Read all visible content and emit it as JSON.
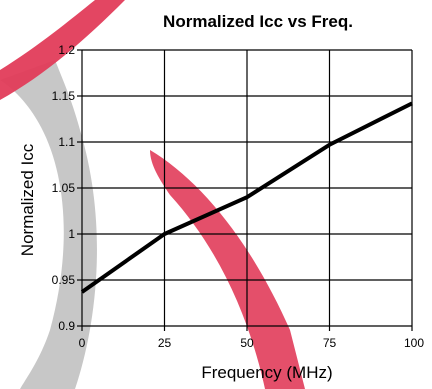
{
  "chart_data": {
    "type": "line",
    "title": "Normalized Icc vs Freq.",
    "xlabel": "Frequency (MHz)",
    "ylabel": "Normalized Icc",
    "xlim": [
      0,
      100
    ],
    "ylim": [
      0.9,
      1.2
    ],
    "xticks": [
      0,
      25,
      50,
      75,
      100
    ],
    "xtick_labels": [
      "0",
      "25",
      "50",
      "75",
      "100"
    ],
    "yticks": [
      0.9,
      0.95,
      1.0,
      1.05,
      1.1,
      1.15,
      1.2
    ],
    "ytick_labels": [
      "0.9",
      "0.95",
      "1",
      "1.05",
      "1.1",
      "1.15",
      "1.2"
    ],
    "grid": true,
    "legend": false,
    "series": [
      {
        "x": [
          0,
          25,
          50,
          75,
          100
        ],
        "values": [
          0.937,
          1.0,
          1.04,
          1.097,
          1.142
        ],
        "color": "#000000"
      }
    ],
    "background_watermark": {
      "colors": [
        "#bdbdbd",
        "#e13c5a"
      ]
    }
  }
}
